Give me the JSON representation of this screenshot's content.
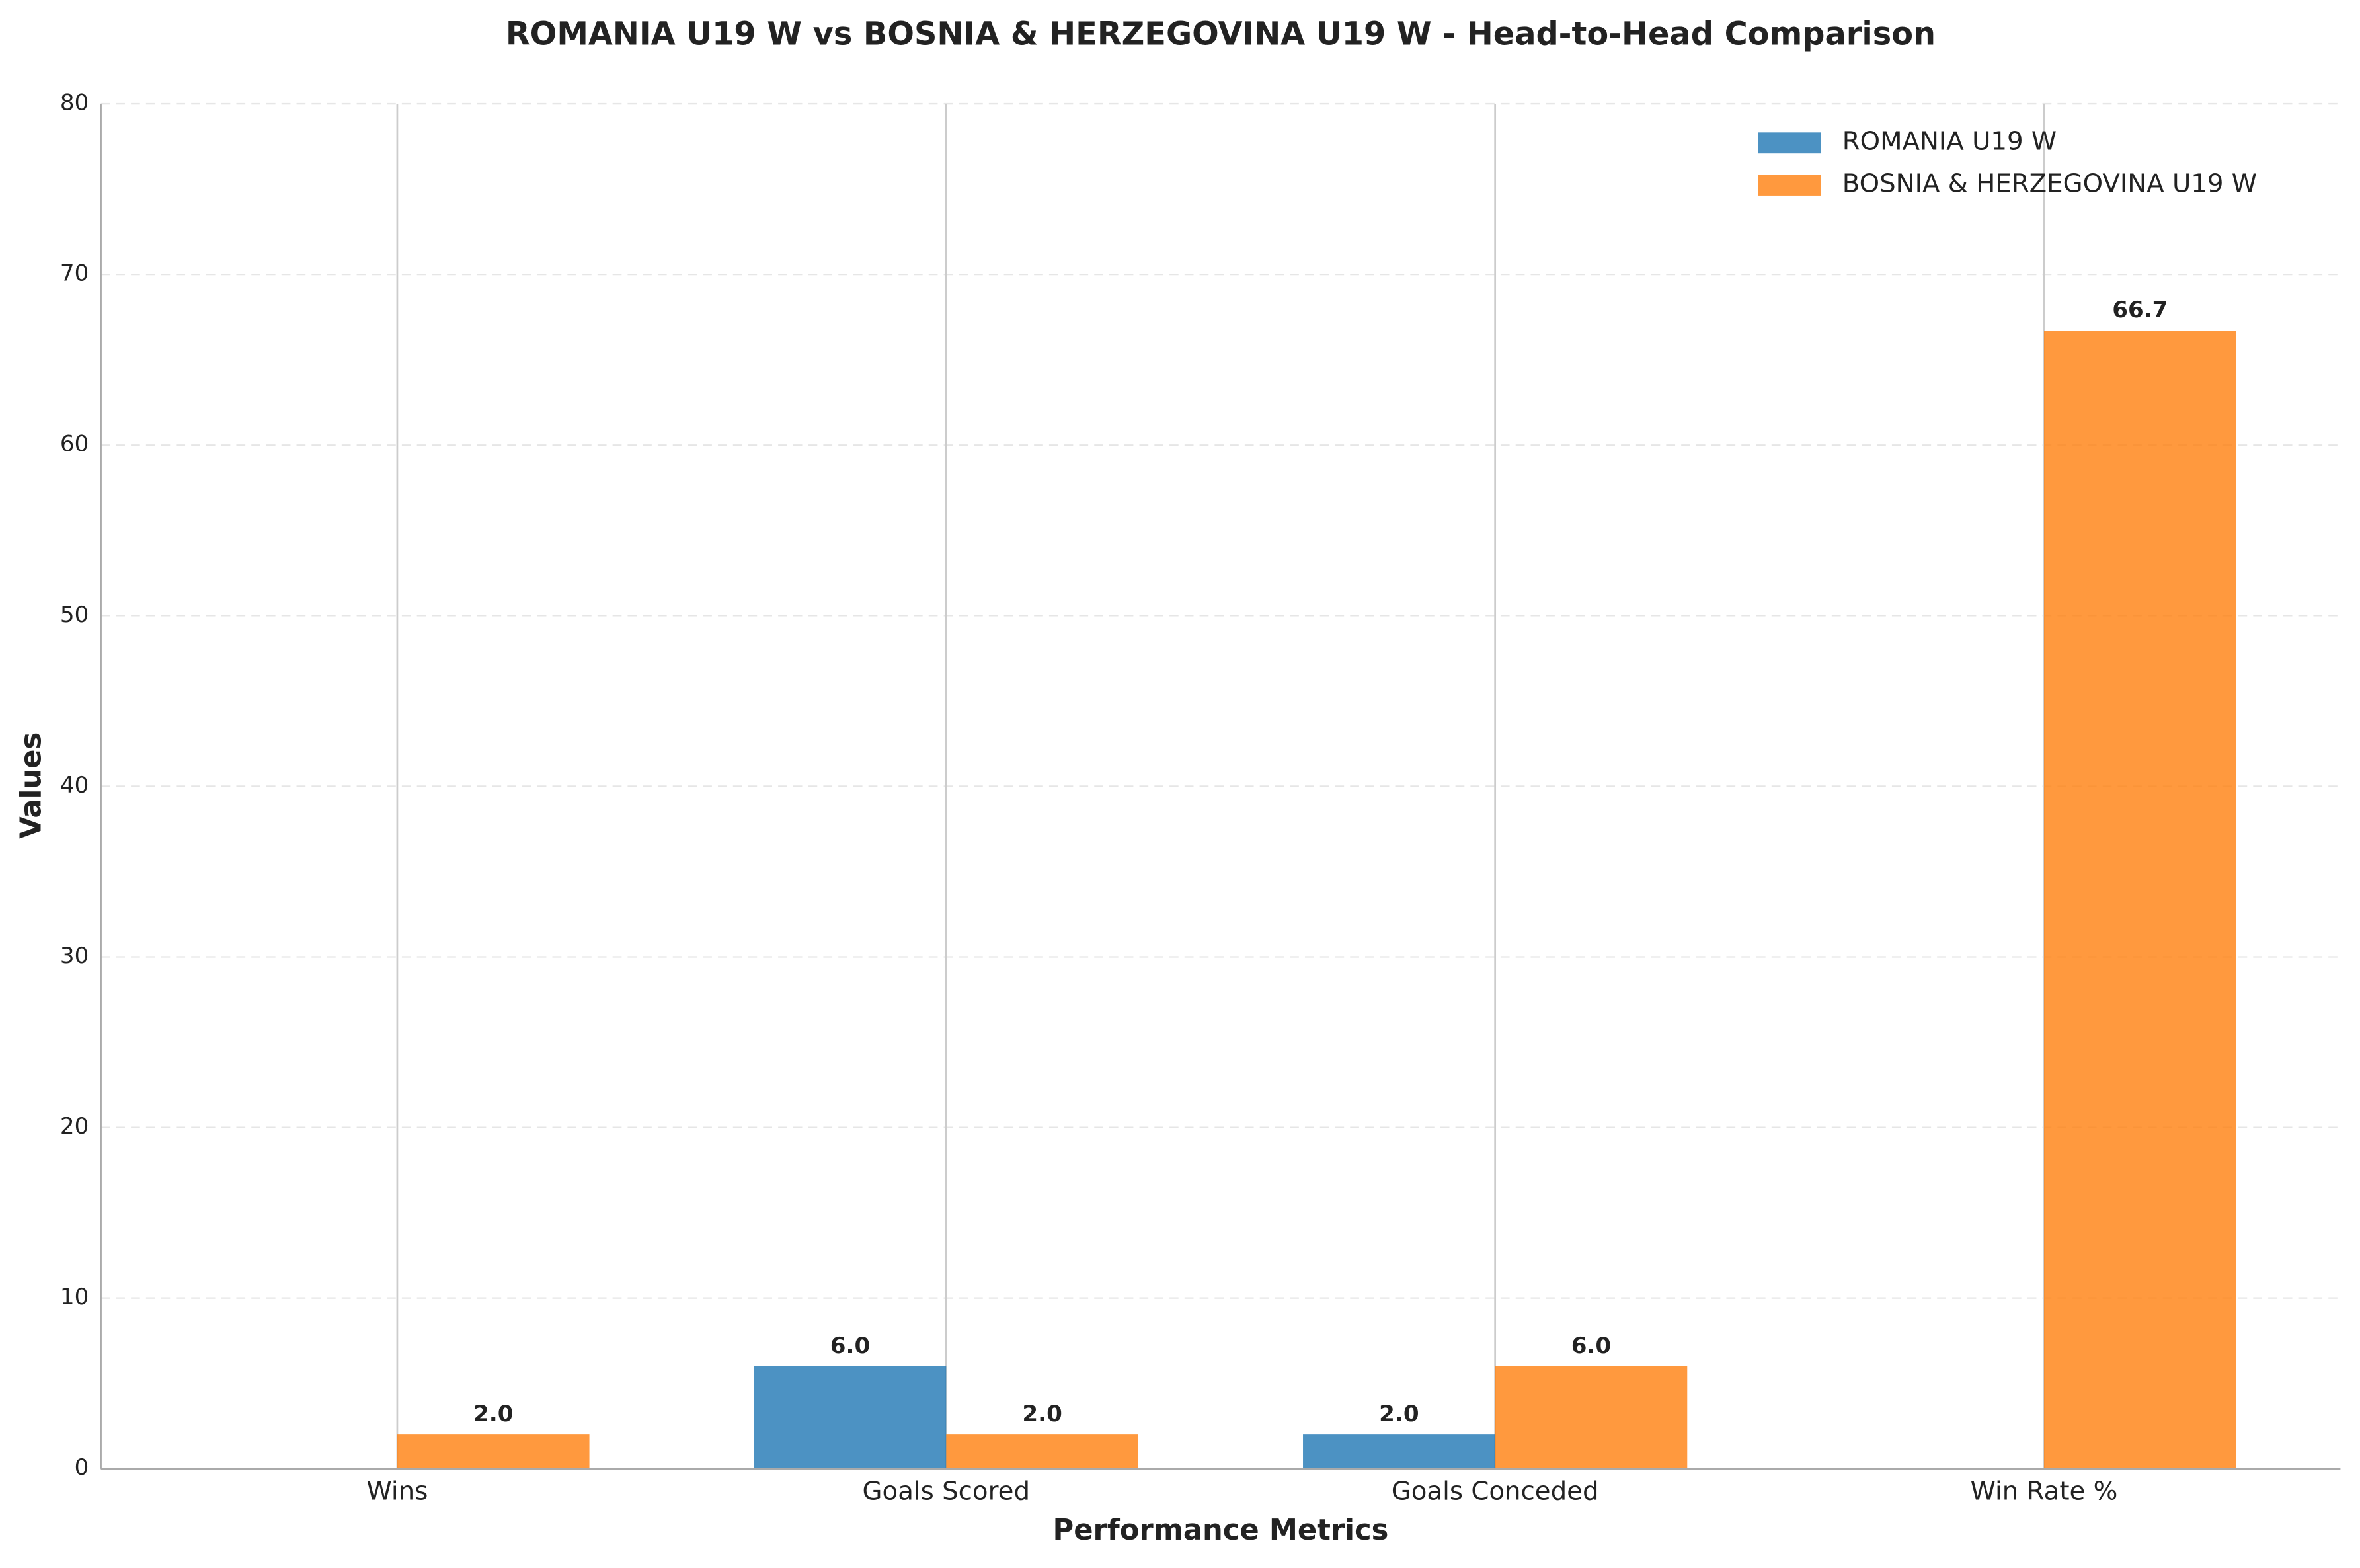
{
  "chart_data": {
    "type": "bar",
    "title": "ROMANIA U19 W vs BOSNIA & HERZEGOVINA U19 W - Head-to-Head Comparison",
    "x_label": "Performance Metrics",
    "y_label": "Values",
    "categories": [
      "Wins",
      "Goals Scored",
      "Goals Conceded",
      "Win Rate %"
    ],
    "series": [
      {
        "name": "ROMANIA U19 W",
        "color": "#1f77b4",
        "values": [
          0,
          6,
          2,
          0
        ],
        "value_labels": [
          null,
          "6.0",
          "2.0",
          null
        ]
      },
      {
        "name": "BOSNIA & HERZEGOVINA U19 W",
        "color": "#ff7f0e",
        "values": [
          2,
          2,
          6,
          66.7
        ],
        "value_labels": [
          "2.0",
          "2.0",
          "6.0",
          "66.7"
        ]
      }
    ],
    "ylim": [
      0,
      80
    ],
    "yticks": [
      0,
      10,
      20,
      30,
      40,
      50,
      60,
      70,
      80
    ],
    "grid": true,
    "legend": "upper right"
  }
}
